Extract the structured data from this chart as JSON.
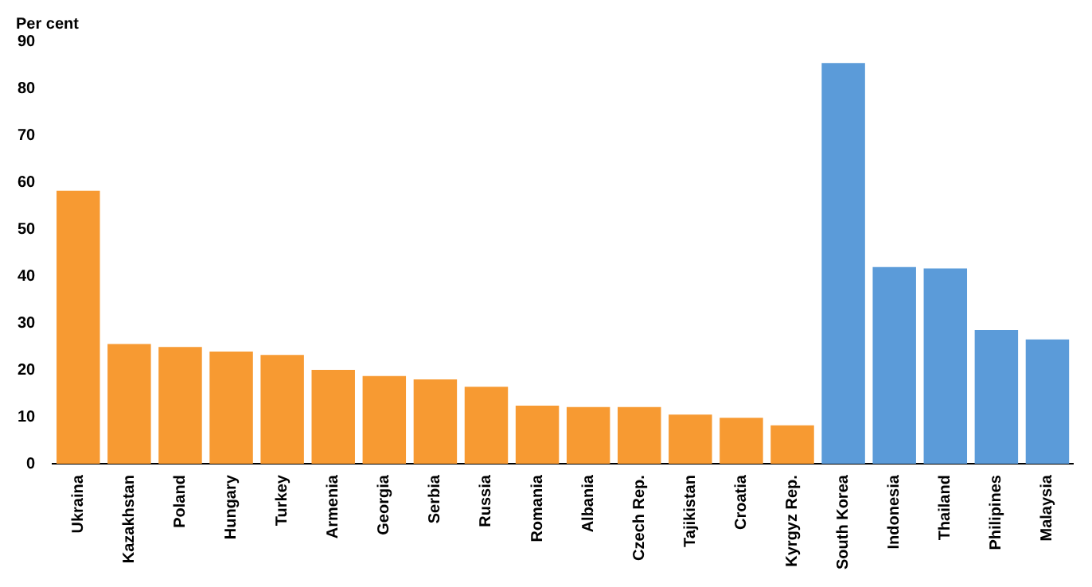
{
  "chart_data": {
    "type": "bar",
    "ylabel": "Per cent",
    "categories": [
      "Ukraina",
      "Kazakhstan",
      "Poland",
      "Hungary",
      "Turkey",
      "Armenia",
      "Georgia",
      "Serbia",
      "Russia",
      "Romania",
      "Albania",
      "Czech Rep.",
      "Tajikistan",
      "Croatia",
      "Kyrgyz Rep.",
      "South Korea",
      "Indonesia",
      "Thailand",
      "Philipines",
      "Malaysia"
    ],
    "values": [
      58.2,
      25.5,
      24.9,
      23.9,
      23.2,
      20.0,
      18.7,
      18.0,
      16.4,
      12.4,
      12.1,
      12.1,
      10.5,
      9.8,
      8.2,
      85.4,
      41.9,
      41.6,
      28.5,
      26.5
    ],
    "colors": [
      "#f79a32",
      "#f79a32",
      "#f79a32",
      "#f79a32",
      "#f79a32",
      "#f79a32",
      "#f79a32",
      "#f79a32",
      "#f79a32",
      "#f79a32",
      "#f79a32",
      "#f79a32",
      "#f79a32",
      "#f79a32",
      "#f79a32",
      "#5b9bd9",
      "#5b9bd9",
      "#5b9bd9",
      "#5b9bd9",
      "#5b9bd9"
    ],
    "ylim": [
      0,
      90
    ],
    "yticks": [
      0,
      10,
      20,
      30,
      40,
      50,
      60,
      70,
      80,
      90
    ],
    "grid": false,
    "legend": false
  }
}
